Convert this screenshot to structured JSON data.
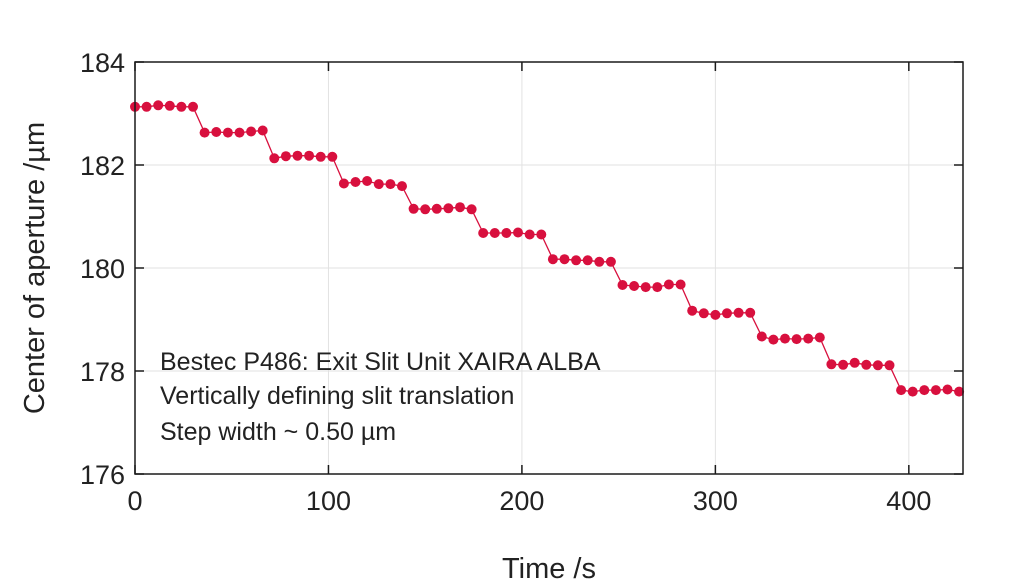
{
  "chart_data": {
    "type": "line",
    "title": "",
    "xlabel": "Time /s",
    "ylabel": "Center of aperture /µm",
    "xlim": [
      0,
      428
    ],
    "ylim": [
      176,
      184
    ],
    "xticks": [
      "0",
      "100",
      "200",
      "300",
      "400"
    ],
    "yticks": [
      "176",
      "178",
      "180",
      "182",
      "184"
    ],
    "grid": true,
    "annotations": [
      "Bestec P486: Exit Slit Unit XAIRA ALBA",
      "Vertically defining slit translation",
      "Step width ~ 0.50 µm"
    ],
    "series": [
      {
        "color": "#d8103e",
        "marker": "circle",
        "points": [
          [
            0,
            183.13
          ],
          [
            6,
            183.13
          ],
          [
            12,
            183.16
          ],
          [
            18,
            183.15
          ],
          [
            24,
            183.13
          ],
          [
            30,
            183.13
          ],
          [
            36,
            182.63
          ],
          [
            42,
            182.64
          ],
          [
            48,
            182.63
          ],
          [
            54,
            182.63
          ],
          [
            60,
            182.65
          ],
          [
            66,
            182.67
          ],
          [
            72,
            182.13
          ],
          [
            78,
            182.17
          ],
          [
            84,
            182.18
          ],
          [
            90,
            182.18
          ],
          [
            96,
            182.16
          ],
          [
            102,
            182.16
          ],
          [
            108,
            181.64
          ],
          [
            114,
            181.67
          ],
          [
            120,
            181.69
          ],
          [
            126,
            181.63
          ],
          [
            132,
            181.63
          ],
          [
            138,
            181.59
          ],
          [
            144,
            181.15
          ],
          [
            150,
            181.14
          ],
          [
            156,
            181.15
          ],
          [
            162,
            181.16
          ],
          [
            168,
            181.18
          ],
          [
            174,
            181.14
          ],
          [
            180,
            180.68
          ],
          [
            186,
            180.68
          ],
          [
            192,
            180.68
          ],
          [
            198,
            180.69
          ],
          [
            204,
            180.65
          ],
          [
            210,
            180.65
          ],
          [
            216,
            180.17
          ],
          [
            222,
            180.17
          ],
          [
            228,
            180.15
          ],
          [
            234,
            180.15
          ],
          [
            240,
            180.12
          ],
          [
            246,
            180.12
          ],
          [
            252,
            179.67
          ],
          [
            258,
            179.65
          ],
          [
            264,
            179.63
          ],
          [
            270,
            179.63
          ],
          [
            276,
            179.68
          ],
          [
            282,
            179.68
          ],
          [
            288,
            179.17
          ],
          [
            294,
            179.12
          ],
          [
            300,
            179.09
          ],
          [
            306,
            179.12
          ],
          [
            312,
            179.13
          ],
          [
            318,
            179.13
          ],
          [
            324,
            178.67
          ],
          [
            330,
            178.61
          ],
          [
            336,
            178.63
          ],
          [
            342,
            178.62
          ],
          [
            348,
            178.63
          ],
          [
            354,
            178.65
          ],
          [
            360,
            178.13
          ],
          [
            366,
            178.12
          ],
          [
            372,
            178.16
          ],
          [
            378,
            178.12
          ],
          [
            384,
            178.11
          ],
          [
            390,
            178.11
          ],
          [
            396,
            177.63
          ],
          [
            402,
            177.6
          ],
          [
            408,
            177.63
          ],
          [
            414,
            177.63
          ],
          [
            420,
            177.64
          ],
          [
            426,
            177.6
          ]
        ]
      }
    ]
  }
}
